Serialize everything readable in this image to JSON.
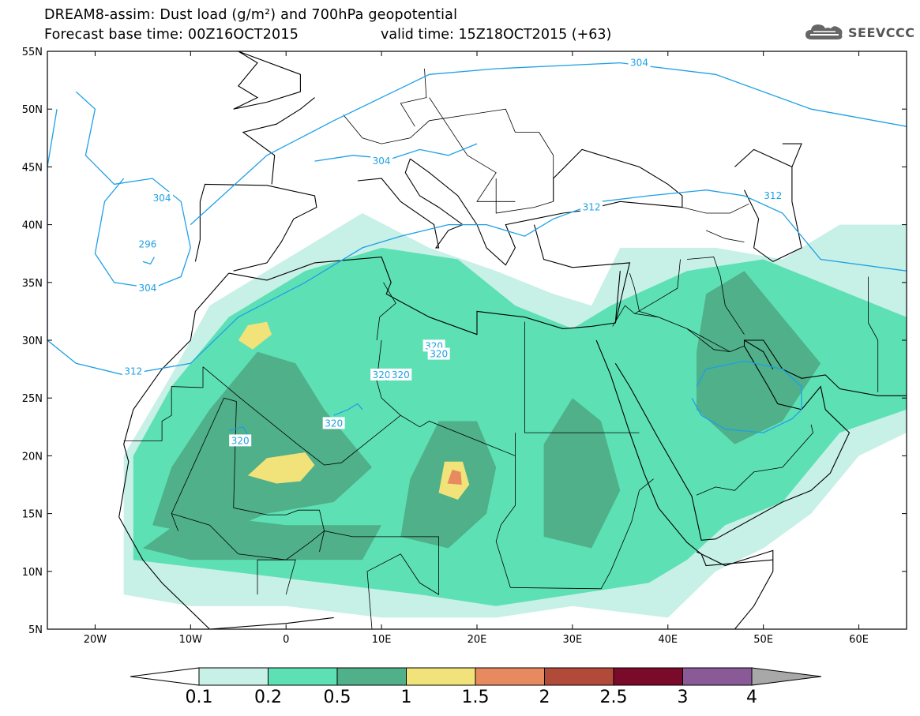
{
  "header": {
    "title_line1": "DREAM8-assim: Dust load (g/m²) and 700hPa geopotential",
    "title_line2": "Forecast base time: 00Z16OCT2015",
    "valid_time": "valid time: 15Z18OCT2015 (+63)",
    "logo_text": "SEEVCCC"
  },
  "axes": {
    "lat_labels": [
      "55N",
      "50N",
      "45N",
      "40N",
      "35N",
      "30N",
      "25N",
      "20N",
      "15N",
      "10N",
      "5N"
    ],
    "lat_values": [
      55,
      50,
      45,
      40,
      35,
      30,
      25,
      20,
      15,
      10,
      5
    ],
    "lon_labels": [
      "20W",
      "10W",
      "0",
      "10E",
      "20E",
      "30E",
      "40E",
      "50E",
      "60E"
    ],
    "lon_values": [
      -20,
      -10,
      0,
      10,
      20,
      30,
      40,
      50,
      60
    ],
    "lon_range": [
      -25,
      65
    ],
    "lat_range": [
      5,
      55
    ]
  },
  "colorbar": {
    "levels": [
      "0.1",
      "0.2",
      "0.5",
      "1",
      "1.5",
      "2",
      "2.5",
      "3",
      "4"
    ],
    "colors": [
      "#c7f0e6",
      "#5ee0b5",
      "#4fb08a",
      "#f2e27a",
      "#e88a5f",
      "#b24a3a",
      "#7a0a2a",
      "#8a5a98",
      "#a8a8a8"
    ]
  },
  "contours": {
    "labels": [
      "304",
      "304",
      "304",
      "296",
      "304",
      "312",
      "312",
      "312",
      "320",
      "320",
      "320",
      "320",
      "320",
      "320"
    ],
    "color": "#1ea0e6"
  },
  "colors": {
    "dust_light": "#c7f0e6",
    "dust_mid": "#5ee0b5",
    "dust_dark": "#4fb08a",
    "dust_yellow": "#f2e27a",
    "dust_orange": "#e88a5f",
    "coastline": "#000000"
  }
}
